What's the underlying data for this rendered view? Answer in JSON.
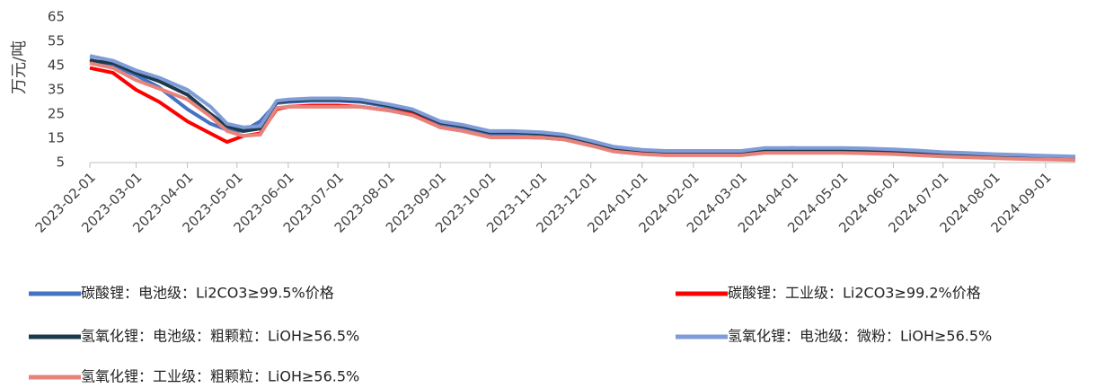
{
  "chart_data": {
    "type": "line",
    "y_label": "万元/吨",
    "x": [
      "2023-02-01",
      "2023-02-15",
      "2023-03-01",
      "2023-03-15",
      "2023-04-01",
      "2023-04-15",
      "2023-04-25",
      "2023-05-05",
      "2023-05-15",
      "2023-05-25",
      "2023-06-01",
      "2023-06-15",
      "2023-07-01",
      "2023-07-15",
      "2023-08-01",
      "2023-08-15",
      "2023-09-01",
      "2023-09-15",
      "2023-10-01",
      "2023-10-15",
      "2023-11-01",
      "2023-11-15",
      "2023-12-01",
      "2023-12-15",
      "2024-01-01",
      "2024-01-15",
      "2024-02-01",
      "2024-02-15",
      "2024-03-01",
      "2024-03-15",
      "2024-04-01",
      "2024-04-15",
      "2024-05-01",
      "2024-05-15",
      "2024-06-01",
      "2024-06-15",
      "2024-07-01",
      "2024-07-15",
      "2024-08-01",
      "2024-08-15",
      "2024-09-01",
      "2024-09-19"
    ],
    "series": [
      {
        "name": "碳酸锂：电池级：Li2CO3≥99.5%价格",
        "color": "#4472c4",
        "values": [
          47.5,
          45,
          41,
          36,
          27,
          21,
          18.5,
          18,
          22,
          29.5,
          30,
          30.5,
          30.5,
          30,
          28,
          26,
          21,
          19.5,
          17,
          17,
          16.8,
          15.5,
          13,
          11,
          9.8,
          9.5,
          9.5,
          9.6,
          9.5,
          10.5,
          11,
          10.5,
          10.5,
          10.3,
          10,
          9.5,
          8.8,
          8.5,
          8,
          7.8,
          7.5,
          7.2
        ]
      },
      {
        "name": "碳酸锂：工业级：Li2CO3≥99.2%价格",
        "color": "#ff0000",
        "values": [
          44,
          42,
          35,
          30,
          22,
          17,
          13.5,
          16,
          17,
          27,
          28,
          28.5,
          28.5,
          28,
          26.5,
          25,
          19.5,
          18,
          15.5,
          15.5,
          15.3,
          14.5,
          12,
          10,
          8.8,
          8.5,
          8.5,
          8.5,
          8.5,
          9.5,
          10,
          9.5,
          9.5,
          9.3,
          9,
          8.5,
          7.8,
          7.5,
          7.2,
          7,
          6.8,
          6.5
        ]
      },
      {
        "name": "氢氧化锂：电池级：粗颗粒：LiOH≥56.5%",
        "color": "#1b3a4b",
        "values": [
          47,
          46,
          42,
          38.5,
          33,
          25,
          20,
          18,
          19,
          30,
          30.5,
          31,
          31,
          30.5,
          28.5,
          26.5,
          21.5,
          20,
          17.5,
          17.5,
          17,
          16,
          13.5,
          11,
          10,
          9.5,
          9.5,
          9.5,
          9.5,
          10.5,
          10.5,
          10.5,
          10.5,
          10.3,
          10,
          9.5,
          9,
          8.5,
          8,
          7.8,
          7.5,
          7.2
        ]
      },
      {
        "name": "氢氧化锂：电池级：微粉：LiOH≥56.5%",
        "color": "#7f9cd8",
        "values": [
          49,
          47,
          43,
          40,
          35,
          28,
          21,
          19.5,
          20,
          30.5,
          31,
          31.5,
          31.5,
          31,
          29,
          27,
          22,
          20.5,
          18,
          18,
          17.5,
          16.5,
          14,
          11.5,
          10.3,
          9.8,
          9.8,
          9.8,
          9.8,
          11,
          11,
          11,
          11,
          10.8,
          10.5,
          10,
          9.3,
          9,
          8.5,
          8.2,
          7.8,
          7.5
        ]
      },
      {
        "name": "氢氧化锂：工业级：粗颗粒：LiOH≥56.5%",
        "color": "#e8837b",
        "values": [
          46,
          44,
          39,
          35.5,
          31,
          24,
          18,
          16,
          16.5,
          27.5,
          28,
          28,
          28,
          28,
          26.5,
          24.5,
          19.5,
          18,
          15.5,
          15.5,
          15.3,
          14.5,
          12,
          9.5,
          8.5,
          8,
          8,
          8,
          8,
          9,
          9,
          9,
          9,
          8.8,
          8.5,
          8,
          7.5,
          7.2,
          6.8,
          6.5,
          6.3,
          6
        ]
      }
    ],
    "xlim": [
      "2023-02-01",
      "2024-09-19"
    ],
    "xticks": [
      "2023-02-01",
      "2023-03-01",
      "2023-04-01",
      "2023-05-01",
      "2023-06-01",
      "2023-07-01",
      "2023-08-01",
      "2023-09-01",
      "2023-10-01",
      "2023-11-01",
      "2023-12-01",
      "2024-01-01",
      "2024-02-01",
      "2024-03-01",
      "2024-04-01",
      "2024-05-01",
      "2024-06-01",
      "2024-07-01",
      "2024-08-01",
      "2024-09-01"
    ],
    "ylim": [
      5,
      65
    ],
    "yticks": [
      5,
      15,
      25,
      35,
      45,
      55,
      65
    ],
    "grid": false,
    "legend": "bottom"
  }
}
